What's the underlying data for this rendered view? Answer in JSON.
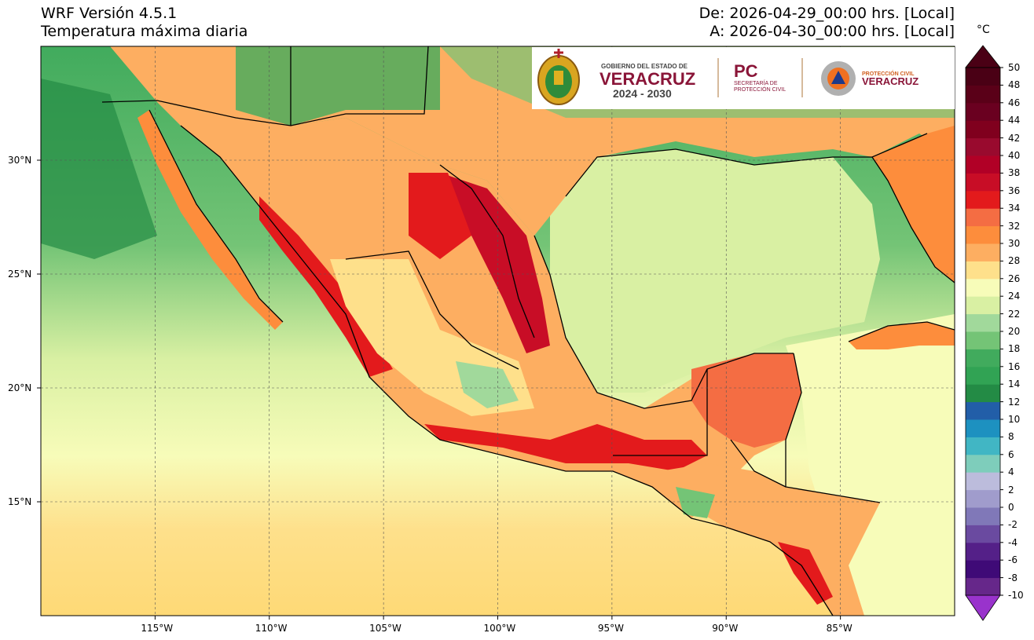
{
  "header": {
    "model": "WRF Versión 4.5.1",
    "variable": "Temperatura máxima diaria",
    "from": "De: 2026-04-29_00:00 hrs. [Local]",
    "to": "A: 2026-04-30_00:00 hrs. [Local]"
  },
  "map": {
    "lon_range": [
      -120,
      -80
    ],
    "lat_range": [
      10,
      35
    ],
    "lon_ticks": [
      -115,
      -110,
      -105,
      -100,
      -95,
      -90,
      -85
    ],
    "lat_ticks": [
      15,
      20,
      25,
      30
    ],
    "lon_labels": [
      "115°W",
      "110°W",
      "105°W",
      "100°W",
      "95°W",
      "90°W",
      "85°W"
    ],
    "lat_labels": [
      "15°N",
      "20°N",
      "25°N",
      "30°N"
    ],
    "gridlines": true
  },
  "logos": {
    "gov_top": "GOBIERNO DEL ESTADO DE",
    "gov_state": "VERACRUZ",
    "gov_years": "2024 - 2030",
    "pc_short": "PC",
    "pc_line1": "SECRETARÍA DE",
    "pc_line2": "PROTECCIÓN CIVIL",
    "pcv_line1": "PROTECCIÓN CIVIL",
    "pcv_line2": "VERACRUZ"
  },
  "colorbar": {
    "unit": "°C",
    "min": -10,
    "max": 50,
    "step": 2,
    "labels": [
      "50",
      "48",
      "46",
      "44",
      "42",
      "40",
      "38",
      "36",
      "34",
      "32",
      "30",
      "28",
      "26",
      "24",
      "22",
      "20",
      "18",
      "16",
      "14",
      "12",
      "10",
      "8",
      "6",
      "4",
      "2",
      "0",
      "-2",
      "-4",
      "-6",
      "-8",
      "-10"
    ],
    "colors": [
      "#9933cc",
      "#66278a",
      "#3f0a77",
      "#542088",
      "#6a4aa0",
      "#8078b8",
      "#a09ccc",
      "#bcbcdc",
      "#7ecdbb",
      "#41b6c4",
      "#1d91c0",
      "#225ea8",
      "#238b45",
      "#31a354",
      "#41ab5d",
      "#74c476",
      "#a1d99b",
      "#d9f0a3",
      "#f7fcb9",
      "#fee08b",
      "#fdae61",
      "#fd8d3c",
      "#f46d43",
      "#e31a1c",
      "#c80d26",
      "#b10026",
      "#990a2e",
      "#80001e",
      "#6a0020",
      "#5a0018",
      "#4a0015"
    ]
  },
  "colors": {
    "ocean_pacific_north": "#41ab5d",
    "ocean_pacific_mid": "#74c476",
    "ocean_pacific_south": "#fee08b",
    "gulf": "#d9f0a3",
    "caribbean": "#f7fcb9",
    "land_hot": "#e31a1c",
    "land_warm": "#fdae61",
    "veracruz_maroon": "#8a1538"
  }
}
